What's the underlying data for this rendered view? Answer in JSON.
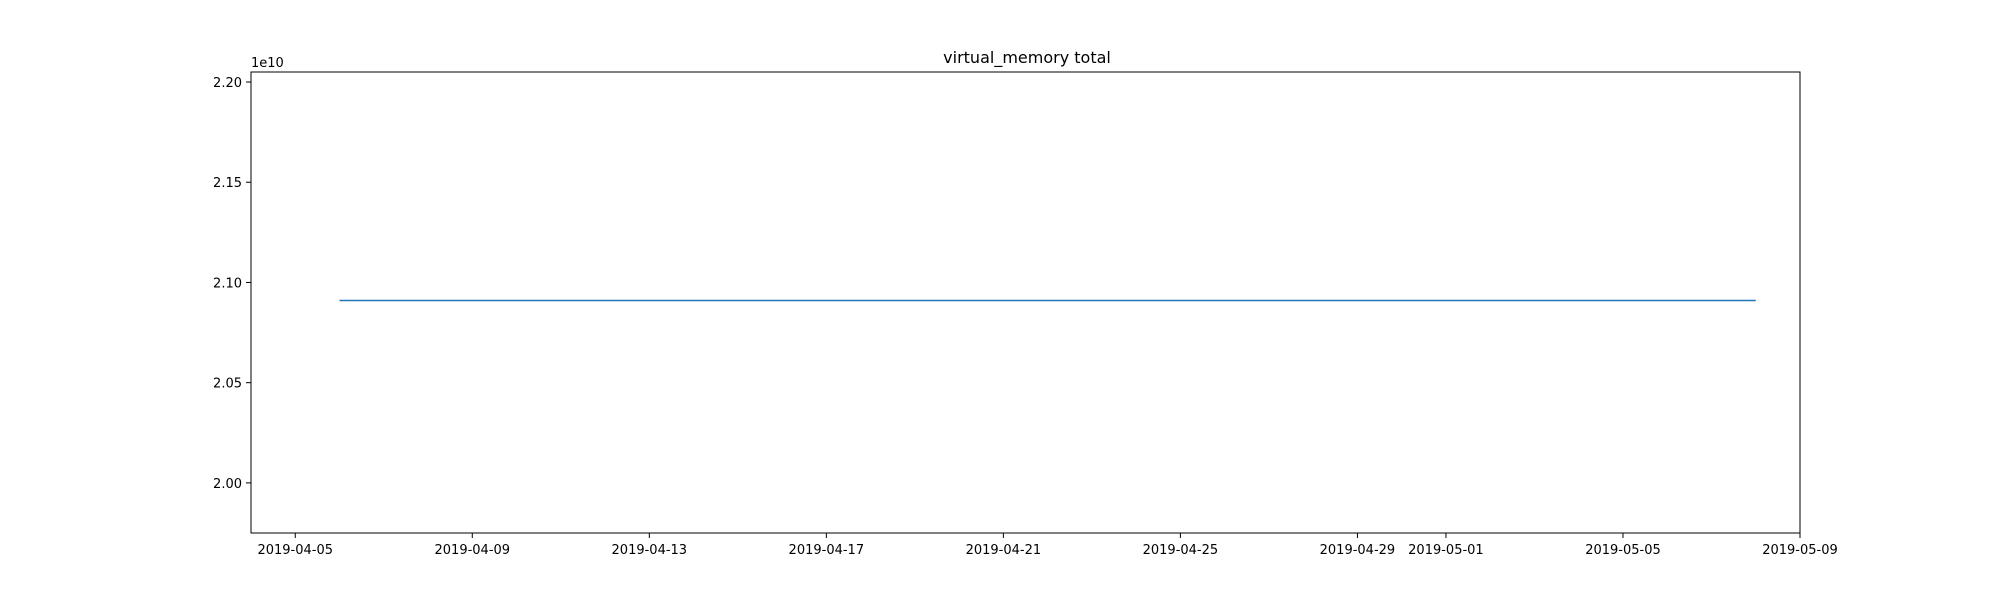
{
  "chart_data": {
    "type": "line",
    "title": "virtual_memory total",
    "xlabel": "",
    "ylabel": "",
    "y_offset_label": "1e10",
    "x_ticks": [
      "2019-04-05",
      "2019-04-09",
      "2019-04-13",
      "2019-04-17",
      "2019-04-21",
      "2019-04-25",
      "2019-04-29",
      "2019-05-01",
      "2019-05-05",
      "2019-05-09"
    ],
    "y_ticks": [
      2.0,
      2.05,
      2.1,
      2.15,
      2.2
    ],
    "xlim": [
      "2019-04-04",
      "2019-05-09"
    ],
    "ylim": [
      1.975,
      2.205
    ],
    "grid": false,
    "series": [
      {
        "x": [
          "2019-04-06",
          "2019-05-08"
        ],
        "y": [
          2.091,
          2.091
        ],
        "color": "#1f77b4"
      }
    ]
  }
}
